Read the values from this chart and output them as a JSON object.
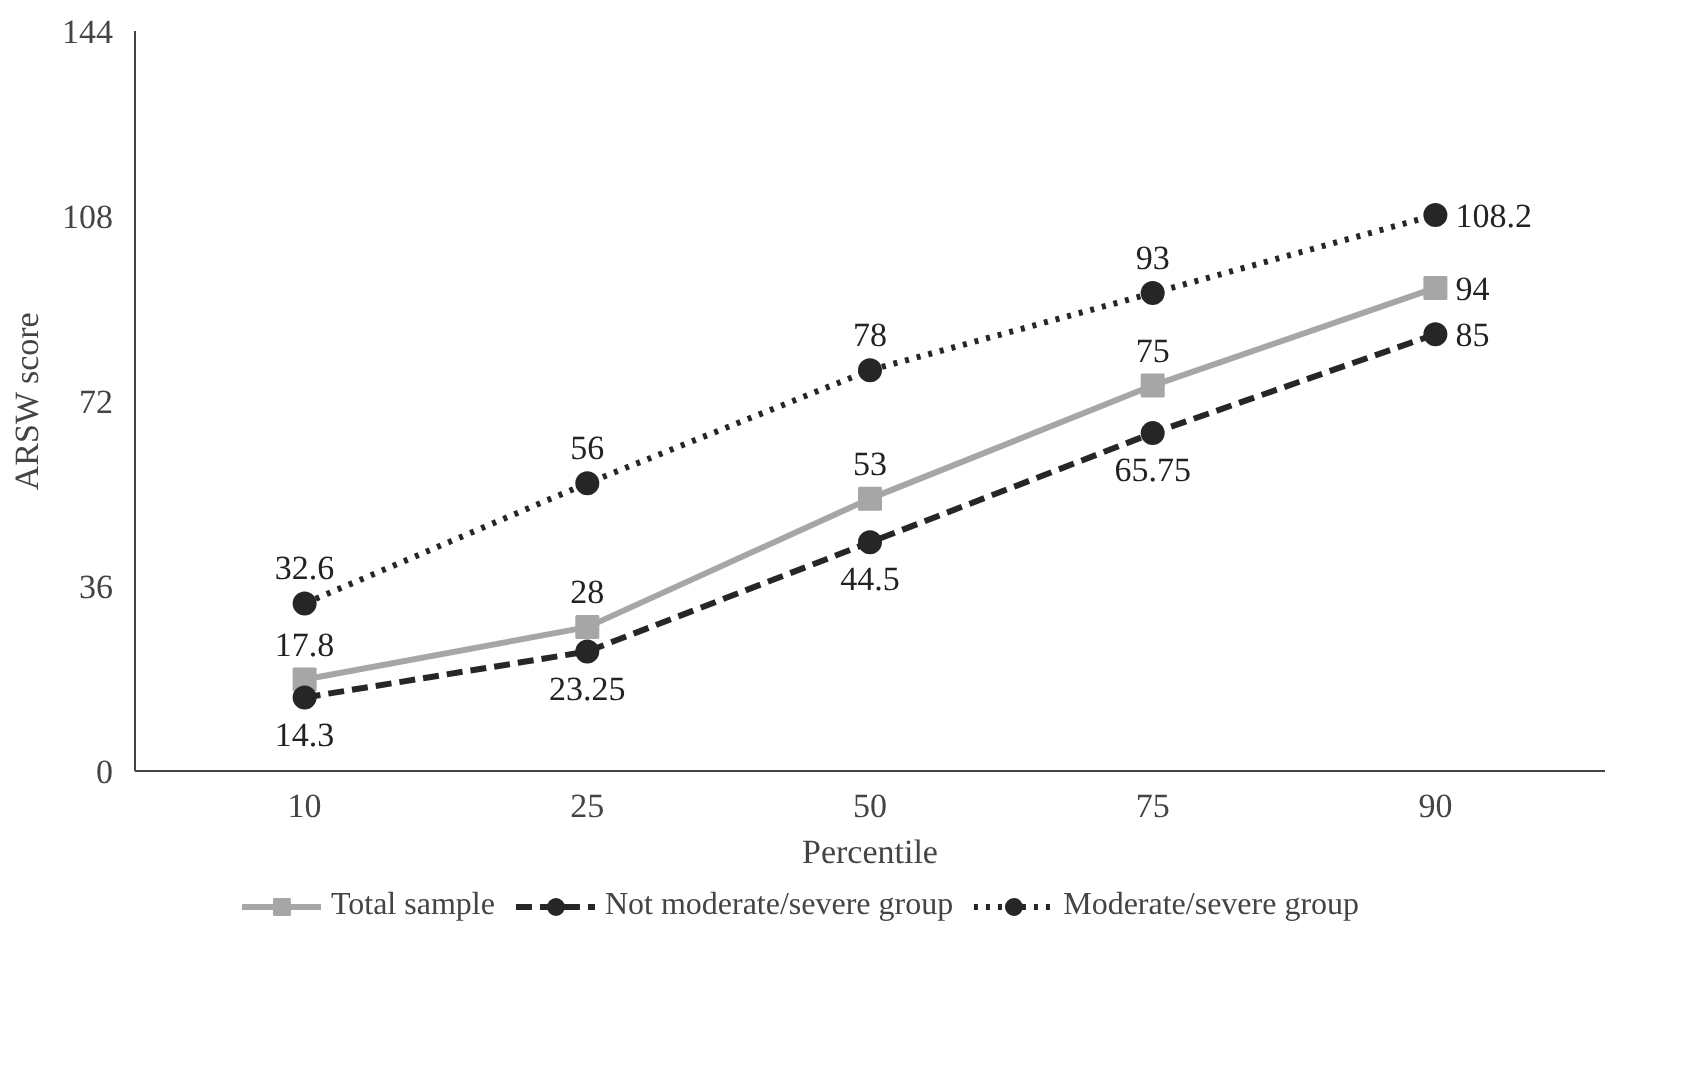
{
  "chart_data": {
    "type": "line",
    "xlabel": "Percentile",
    "ylabel": "ARSW score",
    "categories": [
      "10",
      "25",
      "50",
      "75",
      "90"
    ],
    "series": [
      {
        "name": "Total sample",
        "color": "#a6a6a6",
        "marker": "square",
        "line_style": "solid",
        "values": [
          17.8,
          28,
          53,
          75,
          94
        ]
      },
      {
        "name": "Not moderate/severe group",
        "color": "#262626",
        "marker": "circle",
        "line_style": "dashed",
        "values": [
          14.3,
          23.25,
          44.5,
          65.75,
          85
        ]
      },
      {
        "name": "Moderate/severe group",
        "color": "#262626",
        "marker": "circle",
        "line_style": "dotted",
        "values": [
          32.6,
          56,
          78,
          93,
          108.2
        ]
      }
    ],
    "ylim": [
      0,
      144
    ],
    "yticks": [
      0,
      36,
      72,
      108,
      144
    ],
    "grid": false,
    "legend": "bottom",
    "data_labels": true
  }
}
